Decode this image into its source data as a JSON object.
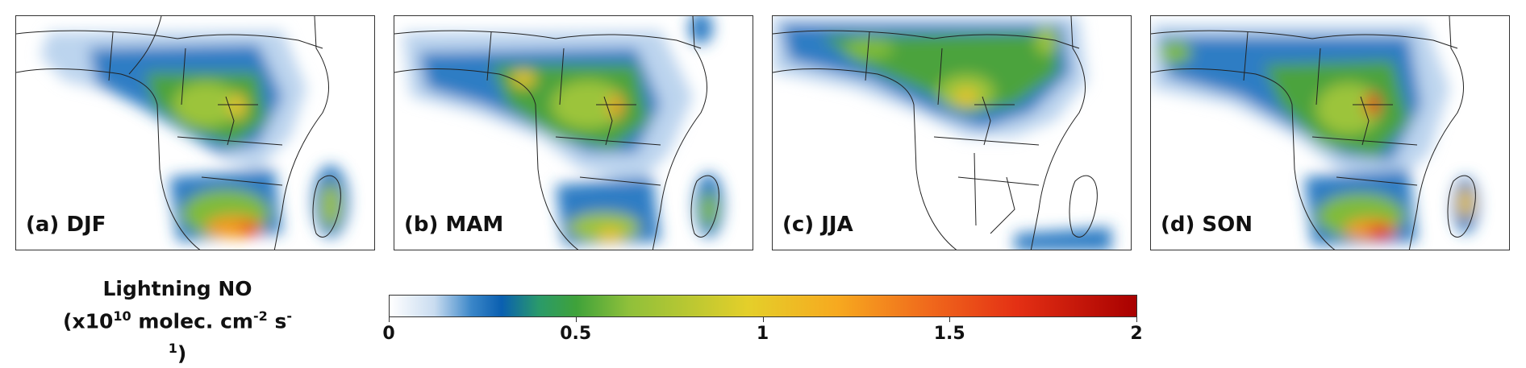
{
  "panels": [
    {
      "label": "(a) DJF"
    },
    {
      "label": "(b) MAM"
    },
    {
      "label": "(c) JJA"
    },
    {
      "label": "(d) SON"
    }
  ],
  "colorbar": {
    "title_line1": "Lightning NO",
    "title_prefix": "(x10",
    "title_exp1": "10",
    "title_mid": " molec. cm",
    "title_exp2": "-2",
    "title_mid2": " s",
    "title_exp3": "-1",
    "title_suffix": ")",
    "ticks": [
      "0",
      "0.5",
      "1",
      "1.5",
      "2"
    ],
    "range": [
      0,
      2
    ]
  },
  "colors": {
    "low": "#ffffff",
    "light_blue": "#c9dcf0",
    "blue": "#0a5fb0",
    "green": "#3fa23a",
    "yellow": "#e4cf2a",
    "orange": "#f7a91f",
    "red": "#e43014",
    "dark_red": "#a80000"
  }
}
